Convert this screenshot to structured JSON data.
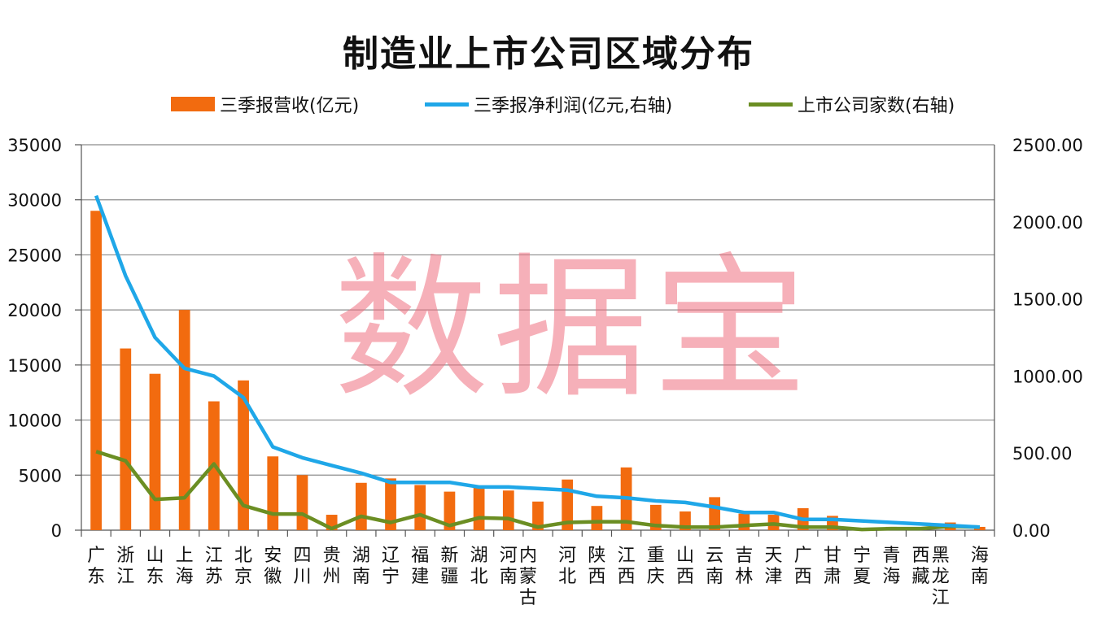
{
  "colors": {
    "bar": "#f26b0f",
    "profit_line": "#1fa7e8",
    "count_line": "#6b8e23",
    "watermark": "#f07080"
  },
  "watermark": "数据宝",
  "chart_data": {
    "type": "bar",
    "title": "制造业上市公司区域分布",
    "legend_position": "top",
    "grid": true,
    "categories": [
      "广东",
      "浙江",
      "山东",
      "上海",
      "江苏",
      "北京",
      "安徽",
      "四川",
      "贵州",
      "湖南",
      "辽宁",
      "福建",
      "新疆",
      "湖北",
      "河南",
      "内蒙古",
      "河北",
      "陕西",
      "江西",
      "重庆",
      "山西",
      "云南",
      "吉林",
      "天津",
      "广西",
      "甘肃",
      "宁夏",
      "青海",
      "西藏",
      "黑龙江",
      "海南"
    ],
    "y_left": {
      "ylim": [
        0,
        35000
      ],
      "ticks": [
        "0",
        "5000",
        "10000",
        "15000",
        "20000",
        "25000",
        "30000",
        "35000"
      ]
    },
    "y_right": {
      "ylim": [
        0,
        2500
      ],
      "ticks": [
        "0.00",
        "500.00",
        "1000.00",
        "1500.00",
        "2000.00",
        "2500.00"
      ]
    },
    "series": [
      {
        "name": "三季报营收(亿元)",
        "type": "bar",
        "axis": "left",
        "values": [
          29000,
          16500,
          14200,
          20000,
          11700,
          13600,
          6700,
          5000,
          1400,
          4300,
          4700,
          4100,
          3500,
          3900,
          3600,
          2600,
          4600,
          2200,
          5700,
          2300,
          1700,
          3000,
          1500,
          1400,
          2000,
          1300,
          200,
          300,
          200,
          700,
          300
        ]
      },
      {
        "name": "三季报净利润(亿元,右轴)",
        "type": "line",
        "axis": "right",
        "values": [
          2170,
          1650,
          1250,
          1050,
          1000,
          860,
          540,
          470,
          420,
          370,
          310,
          310,
          310,
          280,
          280,
          270,
          260,
          220,
          210,
          190,
          180,
          150,
          115,
          115,
          70,
          70,
          60,
          50,
          40,
          30,
          20
        ]
      },
      {
        "name": "上市公司家数(右轴)",
        "type": "line",
        "axis": "right",
        "values": [
          510,
          450,
          200,
          210,
          430,
          160,
          105,
          105,
          10,
          90,
          50,
          100,
          30,
          80,
          75,
          20,
          50,
          55,
          55,
          30,
          20,
          20,
          30,
          40,
          20,
          20,
          5,
          10,
          10,
          25,
          20
        ]
      }
    ]
  }
}
